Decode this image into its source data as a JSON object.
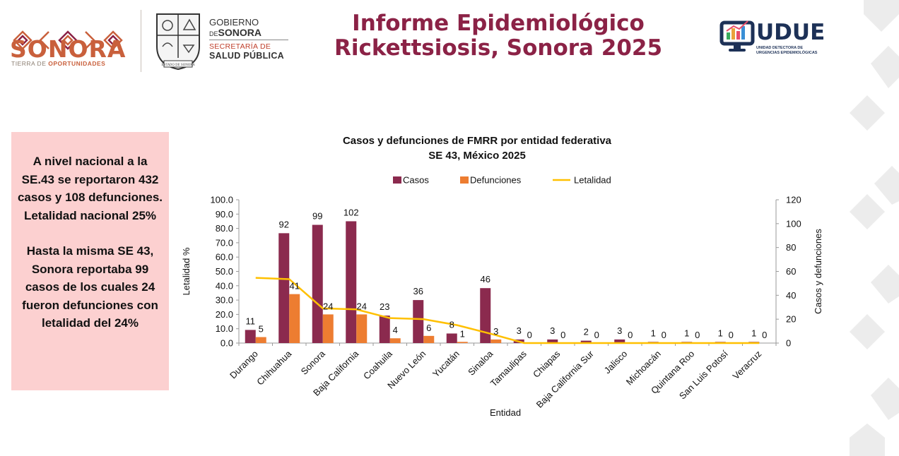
{
  "header": {
    "sonora_logo_word": "SONORA",
    "sonora_tagline_pre": "TIERRA DE ",
    "sonora_tagline_em": "OPORTUNIDADES",
    "gov_line1": "GOBIERNO",
    "gov_line2_small": "DE",
    "gov_line2": "SONORA",
    "gov_line3": "SECRETARÍA DE",
    "gov_line4": "SALUD PÚBLICA",
    "seal_caption": "ESTADO DE SONORA",
    "title_line1": "Informe Epidemiológico",
    "title_line2": "Rickettsiosis, Sonora 2025",
    "udue_word": "UDUE",
    "udue_sub1": "UNIDAD DETECTORA DE",
    "udue_sub2": "URGENCIAS EPIDEMIOLÓGICAS"
  },
  "colors": {
    "title": "#8b2246",
    "casos": "#8b2a4e",
    "defunciones": "#ed7d31",
    "letalidad": "#ffc000",
    "side_box": "#fcd0d0"
  },
  "side_panel": {
    "para1": "A nivel nacional a la SE.43  se reportaron 432 casos y 108 defunciones. Letalidad nacional 25%",
    "para2": "Hasta la misma SE 43, Sonora reportaba 99 casos de los cuales 24 fueron defunciones con letalidad del 24%"
  },
  "chart_data": {
    "type": "bar",
    "title": "Casos y defunciones de FMRR por entidad federativa",
    "subtitle": "SE 43, México 2025",
    "xlabel": "Entidad",
    "ylabel_left": "Letalidad %",
    "ylabel_right": "Casos y defunciones",
    "ylim_left": [
      0,
      100
    ],
    "ylim_right": [
      0,
      120
    ],
    "yticks_left": [
      "0.0",
      "10.0",
      "20.0",
      "30.0",
      "40.0",
      "50.0",
      "60.0",
      "70.0",
      "80.0",
      "90.0",
      "100.0"
    ],
    "yticks_right": [
      "0",
      "20",
      "40",
      "60",
      "80",
      "100",
      "120"
    ],
    "legend_position": "top",
    "categories": [
      "Durango",
      "Chihuahua",
      "Sonora",
      "Baja California",
      "Coahuila",
      "Nuevo León",
      "Yucatán",
      "Sinaloa",
      "Tamaulipas",
      "Chiapas",
      "Baja California Sur",
      "Jalisco",
      "Michoacán",
      "Quintana Roo",
      "San Luis Potosí",
      "Veracruz"
    ],
    "series": [
      {
        "name": "Casos",
        "type": "bar",
        "axis": "right",
        "values": [
          11,
          92,
          99,
          102,
          23,
          36,
          8,
          46,
          3,
          3,
          2,
          3,
          1,
          1,
          1,
          1
        ]
      },
      {
        "name": "Defunciones",
        "type": "bar",
        "axis": "right",
        "values": [
          5,
          41,
          24,
          24,
          4,
          6,
          1,
          3,
          0,
          0,
          0,
          0,
          0,
          0,
          0,
          0
        ]
      },
      {
        "name": "Letalidad",
        "type": "line",
        "axis": "left",
        "values": [
          45.5,
          44.6,
          24.2,
          23.5,
          17.4,
          16.7,
          12.5,
          6.5,
          0,
          0,
          0,
          0,
          0,
          0,
          0,
          0
        ]
      }
    ]
  }
}
